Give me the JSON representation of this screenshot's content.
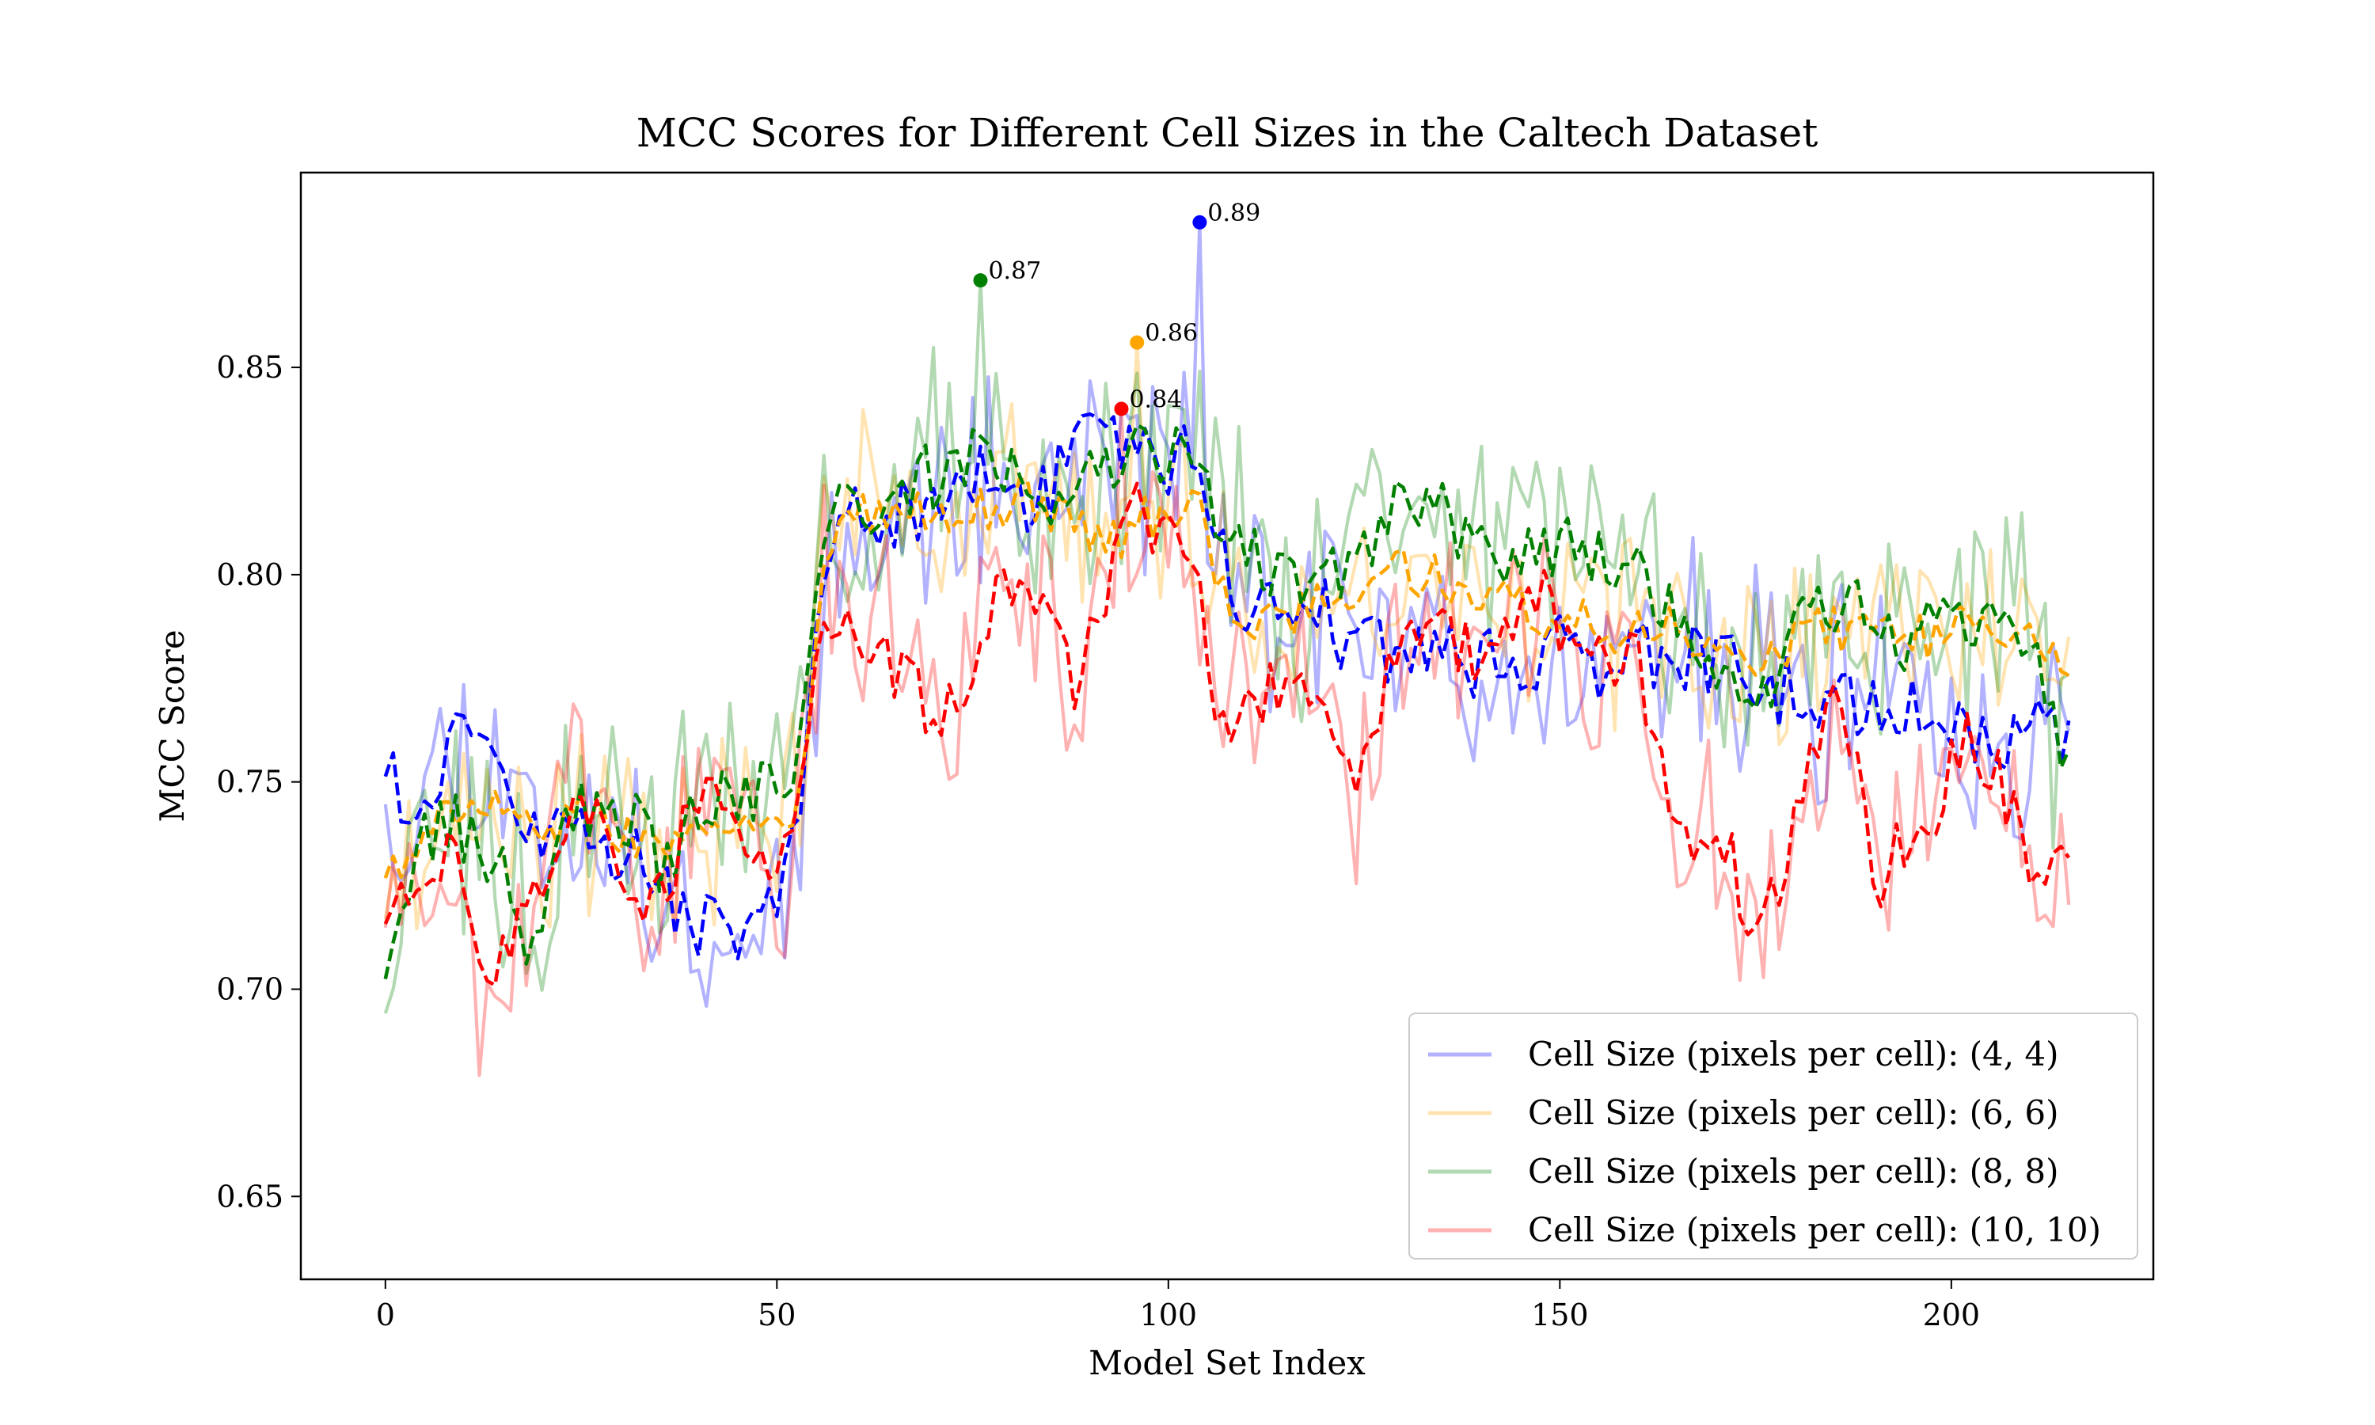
{
  "chart_data": {
    "type": "line",
    "title": "MCC Scores for Different Cell Sizes in the Caltech Dataset",
    "xlabel": "Model Set Index",
    "ylabel": "MCC Score",
    "xlim": [
      -10.8,
      225.8
    ],
    "ylim": [
      0.63,
      0.897
    ],
    "xticks": [
      0,
      50,
      100,
      150,
      200
    ],
    "yticks": [
      0.65,
      0.7,
      0.75,
      0.8,
      0.85
    ],
    "xtick_labels": [
      "0",
      "50",
      "100",
      "150",
      "200"
    ],
    "ytick_labels": [
      "0.65",
      "0.70",
      "0.75",
      "0.80",
      "0.85"
    ],
    "grid": false,
    "legend_position": "lower-right",
    "n_points": 216,
    "series": [
      {
        "name": "Cell Size (pixels per cell): (4, 4)",
        "color": "#0000ff",
        "raw_alpha": 0.3,
        "segments": [
          [
            0,
            0.754
          ],
          [
            4,
            0.741
          ],
          [
            8,
            0.76
          ],
          [
            12,
            0.755
          ],
          [
            16,
            0.75
          ],
          [
            20,
            0.738
          ],
          [
            24,
            0.741
          ],
          [
            28,
            0.736
          ],
          [
            32,
            0.731
          ],
          [
            36,
            0.722
          ],
          [
            40,
            0.716
          ],
          [
            44,
            0.712
          ],
          [
            48,
            0.719
          ],
          [
            50,
            0.722
          ],
          [
            52,
            0.736
          ],
          [
            54,
            0.76
          ],
          [
            56,
            0.802
          ],
          [
            60,
            0.812
          ],
          [
            64,
            0.811
          ],
          [
            68,
            0.817
          ],
          [
            72,
            0.815
          ],
          [
            76,
            0.822
          ],
          [
            80,
            0.82
          ],
          [
            84,
            0.818
          ],
          [
            88,
            0.828
          ],
          [
            92,
            0.834
          ],
          [
            96,
            0.826
          ],
          [
            100,
            0.828
          ],
          [
            104,
            0.83
          ],
          [
            106,
            0.805
          ],
          [
            110,
            0.794
          ],
          [
            114,
            0.79
          ],
          [
            118,
            0.795
          ],
          [
            122,
            0.786
          ],
          [
            126,
            0.784
          ],
          [
            130,
            0.782
          ],
          [
            134,
            0.778
          ],
          [
            138,
            0.78
          ],
          [
            142,
            0.777
          ],
          [
            146,
            0.78
          ],
          [
            150,
            0.782
          ],
          [
            154,
            0.776
          ],
          [
            158,
            0.778
          ],
          [
            162,
            0.781
          ],
          [
            166,
            0.78
          ],
          [
            170,
            0.778
          ],
          [
            174,
            0.776
          ],
          [
            178,
            0.772
          ],
          [
            182,
            0.77
          ],
          [
            186,
            0.771
          ],
          [
            190,
            0.766
          ],
          [
            194,
            0.767
          ],
          [
            198,
            0.765
          ],
          [
            202,
            0.762
          ],
          [
            206,
            0.76
          ],
          [
            210,
            0.762
          ],
          [
            215,
            0.759
          ]
        ],
        "noise": 0.022,
        "smooth_noise": 0.009,
        "seed": 11,
        "max_point": {
          "x": 104,
          "y": 0.885,
          "label": "0.89"
        }
      },
      {
        "name": "Cell Size (pixels per cell): (6, 6)",
        "color": "#ffa500",
        "raw_alpha": 0.3,
        "segments": [
          [
            0,
            0.726
          ],
          [
            4,
            0.735
          ],
          [
            8,
            0.742
          ],
          [
            12,
            0.741
          ],
          [
            16,
            0.743
          ],
          [
            20,
            0.74
          ],
          [
            24,
            0.742
          ],
          [
            28,
            0.74
          ],
          [
            32,
            0.737
          ],
          [
            36,
            0.733
          ],
          [
            40,
            0.736
          ],
          [
            44,
            0.738
          ],
          [
            48,
            0.74
          ],
          [
            50,
            0.739
          ],
          [
            52,
            0.745
          ],
          [
            54,
            0.765
          ],
          [
            56,
            0.807
          ],
          [
            60,
            0.814
          ],
          [
            64,
            0.814
          ],
          [
            68,
            0.817
          ],
          [
            72,
            0.814
          ],
          [
            76,
            0.816
          ],
          [
            80,
            0.818
          ],
          [
            84,
            0.817
          ],
          [
            88,
            0.815
          ],
          [
            92,
            0.808
          ],
          [
            96,
            0.812
          ],
          [
            100,
            0.815
          ],
          [
            104,
            0.815
          ],
          [
            106,
            0.8
          ],
          [
            110,
            0.79
          ],
          [
            114,
            0.79
          ],
          [
            118,
            0.792
          ],
          [
            122,
            0.793
          ],
          [
            126,
            0.798
          ],
          [
            130,
            0.801
          ],
          [
            134,
            0.8
          ],
          [
            138,
            0.797
          ],
          [
            142,
            0.796
          ],
          [
            146,
            0.791
          ],
          [
            150,
            0.79
          ],
          [
            154,
            0.788
          ],
          [
            158,
            0.785
          ],
          [
            162,
            0.788
          ],
          [
            166,
            0.786
          ],
          [
            170,
            0.781
          ],
          [
            174,
            0.78
          ],
          [
            178,
            0.782
          ],
          [
            182,
            0.788
          ],
          [
            186,
            0.786
          ],
          [
            190,
            0.787
          ],
          [
            194,
            0.786
          ],
          [
            198,
            0.785
          ],
          [
            202,
            0.788
          ],
          [
            206,
            0.787
          ],
          [
            210,
            0.783
          ],
          [
            215,
            0.779
          ]
        ],
        "noise": 0.02,
        "smooth_noise": 0.006,
        "seed": 23,
        "max_point": {
          "x": 96,
          "y": 0.856,
          "label": "0.86"
        }
      },
      {
        "name": "Cell Size (pixels per cell): (8, 8)",
        "color": "#008000",
        "raw_alpha": 0.3,
        "segments": [
          [
            0,
            0.708
          ],
          [
            4,
            0.735
          ],
          [
            8,
            0.74
          ],
          [
            12,
            0.737
          ],
          [
            16,
            0.725
          ],
          [
            18,
            0.712
          ],
          [
            20,
            0.72
          ],
          [
            24,
            0.742
          ],
          [
            28,
            0.745
          ],
          [
            32,
            0.74
          ],
          [
            36,
            0.728
          ],
          [
            40,
            0.744
          ],
          [
            44,
            0.749
          ],
          [
            48,
            0.748
          ],
          [
            50,
            0.747
          ],
          [
            52,
            0.752
          ],
          [
            54,
            0.772
          ],
          [
            56,
            0.815
          ],
          [
            60,
            0.818
          ],
          [
            64,
            0.815
          ],
          [
            68,
            0.824
          ],
          [
            72,
            0.822
          ],
          [
            76,
            0.832
          ],
          [
            80,
            0.824
          ],
          [
            84,
            0.815
          ],
          [
            88,
            0.818
          ],
          [
            92,
            0.826
          ],
          [
            96,
            0.83
          ],
          [
            100,
            0.828
          ],
          [
            104,
            0.83
          ],
          [
            106,
            0.816
          ],
          [
            110,
            0.808
          ],
          [
            114,
            0.8
          ],
          [
            118,
            0.795
          ],
          [
            122,
            0.8
          ],
          [
            126,
            0.808
          ],
          [
            130,
            0.818
          ],
          [
            134,
            0.816
          ],
          [
            138,
            0.81
          ],
          [
            142,
            0.806
          ],
          [
            146,
            0.806
          ],
          [
            150,
            0.808
          ],
          [
            154,
            0.806
          ],
          [
            158,
            0.804
          ],
          [
            162,
            0.797
          ],
          [
            166,
            0.788
          ],
          [
            170,
            0.78
          ],
          [
            174,
            0.773
          ],
          [
            178,
            0.777
          ],
          [
            182,
            0.79
          ],
          [
            186,
            0.793
          ],
          [
            190,
            0.789
          ],
          [
            194,
            0.784
          ],
          [
            198,
            0.787
          ],
          [
            202,
            0.79
          ],
          [
            206,
            0.784
          ],
          [
            210,
            0.788
          ],
          [
            215,
            0.752
          ]
        ],
        "noise": 0.025,
        "smooth_noise": 0.008,
        "seed": 37,
        "max_point": {
          "x": 76,
          "y": 0.871,
          "label": "0.87"
        }
      },
      {
        "name": "Cell Size (pixels per cell): (10, 10)",
        "color": "#ff0000",
        "raw_alpha": 0.3,
        "segments": [
          [
            0,
            0.722
          ],
          [
            4,
            0.73
          ],
          [
            8,
            0.734
          ],
          [
            10,
            0.725
          ],
          [
            12,
            0.705
          ],
          [
            16,
            0.71
          ],
          [
            20,
            0.728
          ],
          [
            24,
            0.746
          ],
          [
            28,
            0.74
          ],
          [
            30,
            0.73
          ],
          [
            32,
            0.722
          ],
          [
            36,
            0.72
          ],
          [
            38,
            0.738
          ],
          [
            40,
            0.748
          ],
          [
            44,
            0.742
          ],
          [
            48,
            0.728
          ],
          [
            50,
            0.724
          ],
          [
            52,
            0.74
          ],
          [
            54,
            0.76
          ],
          [
            56,
            0.795
          ],
          [
            60,
            0.785
          ],
          [
            64,
            0.78
          ],
          [
            68,
            0.77
          ],
          [
            70,
            0.76
          ],
          [
            74,
            0.772
          ],
          [
            76,
            0.79
          ],
          [
            80,
            0.797
          ],
          [
            84,
            0.79
          ],
          [
            86,
            0.78
          ],
          [
            88,
            0.772
          ],
          [
            92,
            0.798
          ],
          [
            96,
            0.815
          ],
          [
            100,
            0.81
          ],
          [
            104,
            0.8
          ],
          [
            106,
            0.77
          ],
          [
            110,
            0.765
          ],
          [
            114,
            0.775
          ],
          [
            118,
            0.77
          ],
          [
            122,
            0.755
          ],
          [
            124,
            0.748
          ],
          [
            128,
            0.775
          ],
          [
            132,
            0.785
          ],
          [
            136,
            0.787
          ],
          [
            140,
            0.775
          ],
          [
            144,
            0.785
          ],
          [
            148,
            0.795
          ],
          [
            152,
            0.781
          ],
          [
            156,
            0.778
          ],
          [
            160,
            0.779
          ],
          [
            162,
            0.76
          ],
          [
            166,
            0.736
          ],
          [
            170,
            0.74
          ],
          [
            174,
            0.72
          ],
          [
            178,
            0.725
          ],
          [
            182,
            0.758
          ],
          [
            186,
            0.768
          ],
          [
            188,
            0.752
          ],
          [
            190,
            0.722
          ],
          [
            194,
            0.737
          ],
          [
            198,
            0.745
          ],
          [
            202,
            0.762
          ],
          [
            206,
            0.752
          ],
          [
            210,
            0.73
          ],
          [
            215,
            0.728
          ]
        ],
        "noise": 0.022,
        "smooth_noise": 0.008,
        "seed": 53,
        "max_point": {
          "x": 94,
          "y": 0.84,
          "label": "0.84"
        }
      }
    ]
  }
}
